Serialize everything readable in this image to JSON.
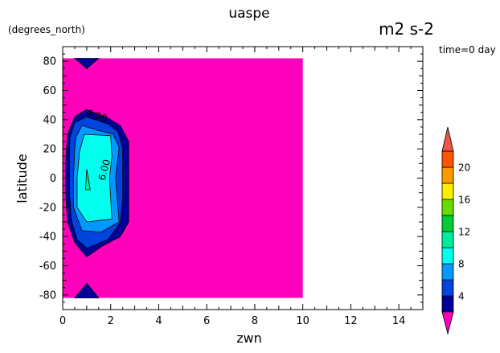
{
  "chart_data": {
    "type": "contour",
    "title": "uaspe",
    "units": "m2 s-2",
    "y_units": "(degrees_north)",
    "time_label": "time=0 day",
    "xlabel": "zwn",
    "ylabel": "latitude",
    "xlim": [
      0,
      15
    ],
    "ylim": [
      -90,
      90
    ],
    "x_ticks": [
      0,
      2,
      4,
      6,
      8,
      10,
      12,
      14
    ],
    "y_ticks": [
      -80,
      -60,
      -40,
      -20,
      0,
      20,
      40,
      60,
      80
    ],
    "data_extent": {
      "x": [
        0,
        10
      ],
      "y": [
        -82,
        82
      ]
    },
    "contour_labels": [
      {
        "text": "4.00",
        "x": 0.95,
        "y": 43
      },
      {
        "text": "6.00",
        "x": 1.75,
        "y": -2
      }
    ],
    "colorbar": {
      "levels": [
        2,
        4,
        6,
        8,
        10,
        12,
        14,
        16,
        18,
        20,
        22
      ],
      "tick_labels": [
        "4",
        "8",
        "12",
        "16",
        "20"
      ],
      "tick_values": [
        4,
        8,
        12,
        16,
        20
      ],
      "under_color": "#ff00bb",
      "over_color": "#ee5544",
      "colors": [
        "#000099",
        "#0044dd",
        "#0099ff",
        "#00ffee",
        "#00ee99",
        "#00cc33",
        "#66dd00",
        "#ffee00",
        "#ff9900",
        "#ff5500",
        "#ee0000"
      ]
    },
    "regions": [
      {
        "name": "background",
        "level_index": -1,
        "points": [
          [
            0,
            -82
          ],
          [
            10,
            -82
          ],
          [
            10,
            82
          ],
          [
            0,
            82
          ]
        ]
      },
      {
        "name": "north-tip",
        "level_index": 0,
        "points": [
          [
            0.5,
            82
          ],
          [
            1.5,
            82
          ],
          [
            1.0,
            75
          ]
        ]
      },
      {
        "name": "south-tip",
        "level_index": 0,
        "points": [
          [
            0.5,
            -82
          ],
          [
            1.0,
            -72
          ],
          [
            1.5,
            -82
          ]
        ]
      },
      {
        "name": "band-2-4",
        "level_index": 0,
        "points": [
          [
            1.0,
            47
          ],
          [
            1.9,
            41
          ],
          [
            2.4,
            36
          ],
          [
            2.75,
            25
          ],
          [
            2.75,
            -5
          ],
          [
            2.75,
            -30
          ],
          [
            2.4,
            -40
          ],
          [
            1.6,
            -47
          ],
          [
            1.0,
            -54
          ],
          [
            0.5,
            -44
          ],
          [
            0.2,
            -30
          ],
          [
            0.12,
            -10
          ],
          [
            0.12,
            10
          ],
          [
            0.2,
            30
          ],
          [
            0.5,
            42
          ]
        ]
      },
      {
        "name": "band-4-6",
        "level_index": 1,
        "points": [
          [
            1.0,
            42
          ],
          [
            1.9,
            37
          ],
          [
            2.3,
            32
          ],
          [
            2.5,
            20
          ],
          [
            2.5,
            -15
          ],
          [
            2.4,
            -30
          ],
          [
            1.9,
            -42
          ],
          [
            1.0,
            -48
          ],
          [
            0.6,
            -42
          ],
          [
            0.35,
            -28
          ],
          [
            0.28,
            -10
          ],
          [
            0.28,
            15
          ],
          [
            0.3,
            28
          ],
          [
            0.5,
            38
          ]
        ]
      },
      {
        "name": "band-6-8",
        "level_index": 2,
        "points": [
          [
            0.8,
            36
          ],
          [
            1.4,
            33
          ],
          [
            2.1,
            30
          ],
          [
            2.35,
            21
          ],
          [
            2.2,
            0
          ],
          [
            2.35,
            -30
          ],
          [
            1.6,
            -37
          ],
          [
            0.8,
            -36
          ],
          [
            0.45,
            -20
          ],
          [
            0.45,
            0
          ],
          [
            0.5,
            20
          ],
          [
            0.55,
            28
          ]
        ]
      },
      {
        "name": "band-8-10",
        "level_index": 3,
        "points": [
          [
            0.9,
            30
          ],
          [
            2.0,
            29
          ],
          [
            2.05,
            15
          ],
          [
            1.95,
            0
          ],
          [
            2.05,
            -28
          ],
          [
            1.0,
            -30
          ],
          [
            0.6,
            -20
          ],
          [
            0.6,
            0
          ],
          [
            0.7,
            18
          ]
        ]
      },
      {
        "name": "band-10-12",
        "level_index": 4,
        "points": [
          [
            1.0,
            6
          ],
          [
            1.15,
            -8
          ],
          [
            0.95,
            -8
          ]
        ]
      }
    ]
  }
}
